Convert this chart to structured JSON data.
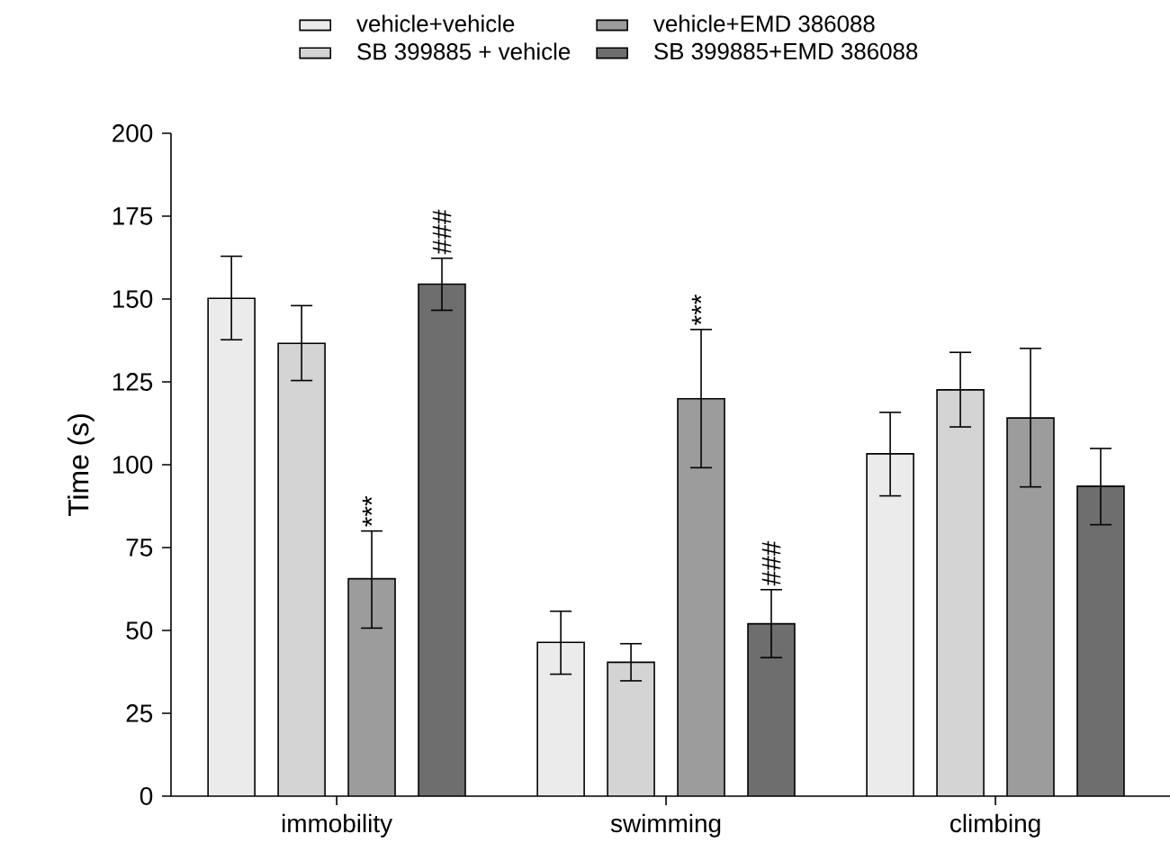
{
  "chart_data": {
    "type": "bar",
    "ylabel": "Time (s)",
    "categories": [
      "immobility",
      "swimming",
      "climbing"
    ],
    "ylim": [
      0,
      200
    ],
    "yticks": [
      0,
      25,
      50,
      75,
      100,
      125,
      150,
      175,
      200
    ],
    "legend": "top",
    "series": [
      {
        "name": "vehicle+vehicle",
        "color": "#ebebeb",
        "values": [
          150.2,
          46.4,
          103.3
        ],
        "errors": [
          [
            137.7,
            162.9
          ],
          [
            36.8,
            55.8
          ],
          [
            90.6,
            115.8
          ]
        ]
      },
      {
        "name": "SB 399885 + vehicle",
        "color": "#d4d4d4",
        "values": [
          136.6,
          40.4,
          122.6
        ],
        "errors": [
          [
            125.4,
            148
          ],
          [
            34.8,
            46
          ],
          [
            111.4,
            133.9
          ]
        ]
      },
      {
        "name": "vehicle+EMD 386088",
        "color": "#9c9c9c",
        "values": [
          65.6,
          119.9,
          114.1
        ],
        "errors": [
          [
            50.7,
            80
          ],
          [
            99.1,
            140.8
          ],
          [
            93.3,
            135.1
          ]
        ],
        "value_labels": [
          "***",
          "***",
          null
        ]
      },
      {
        "name": "SB 399885+EMD 386088",
        "color": "#6e6e6e",
        "values": [
          154.5,
          52,
          93.5
        ],
        "errors": [
          [
            146.6,
            162.3
          ],
          [
            41.8,
            62.3
          ],
          [
            81.9,
            104.9
          ]
        ],
        "value_labels": [
          "###",
          "###",
          null
        ]
      }
    ]
  }
}
